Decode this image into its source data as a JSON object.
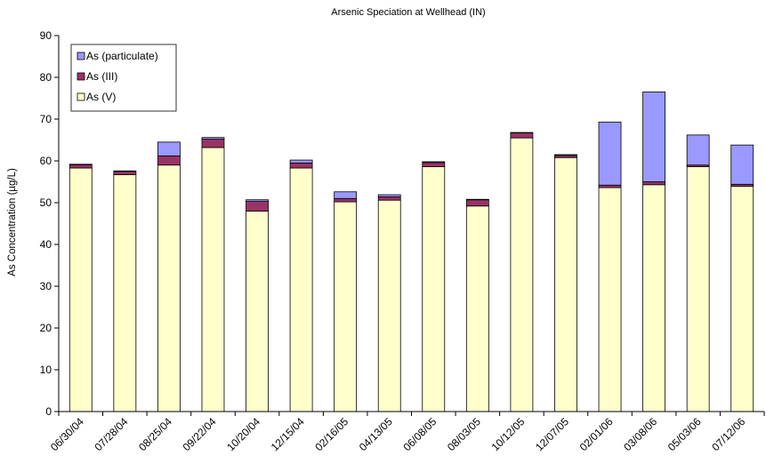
{
  "chart_data": {
    "type": "bar",
    "stacked": true,
    "title": "Arsenic Speciation at Wellhead (IN)",
    "ylabel": "As Concentration (µg/L)",
    "xlabel": "",
    "ylim": [
      0,
      90
    ],
    "yticks": [
      0,
      10,
      20,
      30,
      40,
      50,
      60,
      70,
      80,
      90
    ],
    "grid": false,
    "legend_position": "top-left",
    "categories": [
      "06/30/04",
      "07/28/04",
      "08/25/04",
      "09/22/04",
      "10/20/04",
      "12/15/04",
      "02/16/05",
      "04/13/05",
      "06/08/05",
      "08/03/05",
      "10/12/05",
      "12/07/05",
      "02/01/06",
      "03/08/06",
      "05/03/06",
      "07/12/06"
    ],
    "series": [
      {
        "name": "As (V)",
        "color": "#FFFFCC",
        "values": [
          58.3,
          56.7,
          59.0,
          63.2,
          48.0,
          58.3,
          50.2,
          50.6,
          58.6,
          49.2,
          65.5,
          60.8,
          53.6,
          54.3,
          58.6,
          53.9
        ]
      },
      {
        "name": "As (III)",
        "color": "#993366",
        "values": [
          0.8,
          0.8,
          2.2,
          2.0,
          2.3,
          1.2,
          0.8,
          0.8,
          1.0,
          1.5,
          1.2,
          0.5,
          0.6,
          0.7,
          0.4,
          0.5
        ]
      },
      {
        "name": "As (particulate)",
        "color": "#9999FF",
        "values": [
          0.1,
          0.1,
          3.3,
          0.4,
          0.4,
          0.7,
          1.6,
          0.5,
          0.2,
          0.1,
          0.1,
          0.2,
          15.1,
          21.5,
          7.2,
          9.4
        ]
      }
    ],
    "legend_order": [
      "As (particulate)",
      "As (III)",
      "As (V)"
    ]
  }
}
